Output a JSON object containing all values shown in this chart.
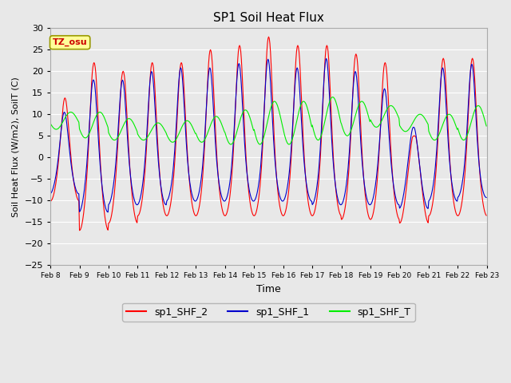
{
  "title": "SP1 Soil Heat Flux",
  "xlabel": "Time",
  "ylabel": "Soil Heat Flux (W/m2), SoilT (C)",
  "ylim": [
    -25,
    30
  ],
  "yticks": [
    -25,
    -20,
    -15,
    -10,
    -5,
    0,
    5,
    10,
    15,
    20,
    25,
    30
  ],
  "x_labels": [
    "Feb 8",
    "Feb 9",
    "Feb 10",
    "Feb 11",
    "Feb 12",
    "Feb 13",
    "Feb 14",
    "Feb 15",
    "Feb 16",
    "Feb 17",
    "Feb 18",
    "Feb 19",
    "Feb 20",
    "Feb 21",
    "Feb 22",
    "Feb 23"
  ],
  "bg_color": "#e8e8e8",
  "plot_bg_color": "#e8e8e8",
  "grid_color": "#ffffff",
  "line_colors": {
    "sp1_SHF_2": "#ff0000",
    "sp1_SHF_1": "#0000cc",
    "sp1_SHF_T": "#00ee00"
  },
  "legend_labels": [
    "sp1_SHF_2",
    "sp1_SHF_1",
    "sp1_SHF_T"
  ],
  "annotation_text": "TZ_osu",
  "annotation_color": "#cc0000",
  "annotation_bg": "#ffff99",
  "annotation_border": "#999900"
}
